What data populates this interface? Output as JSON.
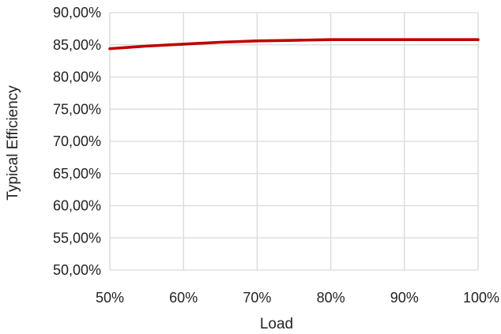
{
  "chart_data": {
    "type": "line",
    "title": "",
    "xlabel": "Load",
    "ylabel": "Typical Efficiency",
    "xlim": [
      50,
      100
    ],
    "ylim": [
      50,
      90
    ],
    "x_ticks": [
      "50%",
      "60%",
      "70%",
      "80%",
      "90%",
      "100%"
    ],
    "y_ticks": [
      "50,00%",
      "55,00%",
      "60,00%",
      "65,00%",
      "70,00%",
      "75,00%",
      "80,00%",
      "85,00%",
      "90,00%"
    ],
    "grid": true,
    "legend": "none",
    "series": [
      {
        "color": "#C00000",
        "x": [
          50,
          55,
          60,
          65,
          70,
          75,
          80,
          85,
          90,
          95,
          100
        ],
        "y": [
          84.4,
          84.8,
          85.1,
          85.4,
          85.6,
          85.7,
          85.8,
          85.8,
          85.8,
          85.8,
          85.8
        ]
      }
    ]
  }
}
